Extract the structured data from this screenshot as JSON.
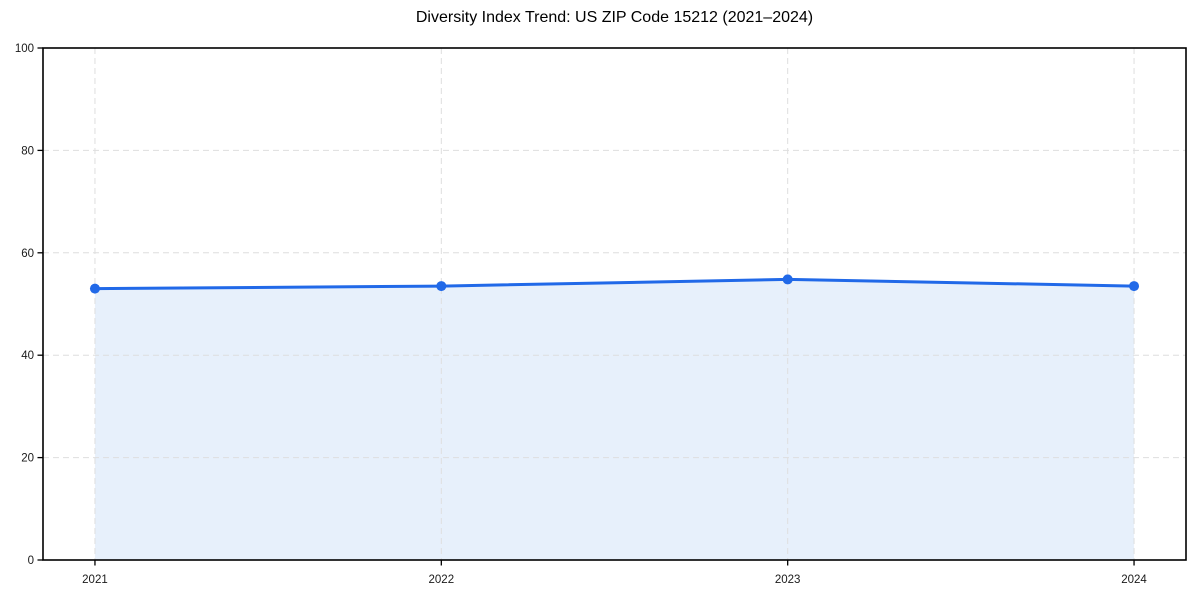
{
  "chart_data": {
    "type": "line",
    "title": "Diversity Index Trend: US ZIP Code 15212 (2021–2024)",
    "x": [
      2021,
      2022,
      2023,
      2024
    ],
    "xtick_labels": [
      "2021",
      "2022",
      "2023",
      "2024"
    ],
    "values": [
      53,
      53.5,
      54.8,
      53.5
    ],
    "yticks": [
      0,
      20,
      40,
      60,
      80,
      100
    ],
    "ytick_labels": [
      "0",
      "20",
      "40",
      "60",
      "80",
      "100"
    ],
    "xlim": [
      2020.85,
      2024.15
    ],
    "ylim": [
      0,
      100
    ],
    "xlabel": "",
    "ylabel": "",
    "grid": true,
    "grid_style": "dashed",
    "legend": "none",
    "marker": "circle",
    "colors": {
      "line": "#2169e8",
      "marker": "#2169e8",
      "area_fill": "#e7f0fb",
      "grid": "#dedede",
      "axis": "#000000",
      "tick_label": "#1a1a1a",
      "title": "#000000",
      "background": "#ffffff"
    }
  }
}
